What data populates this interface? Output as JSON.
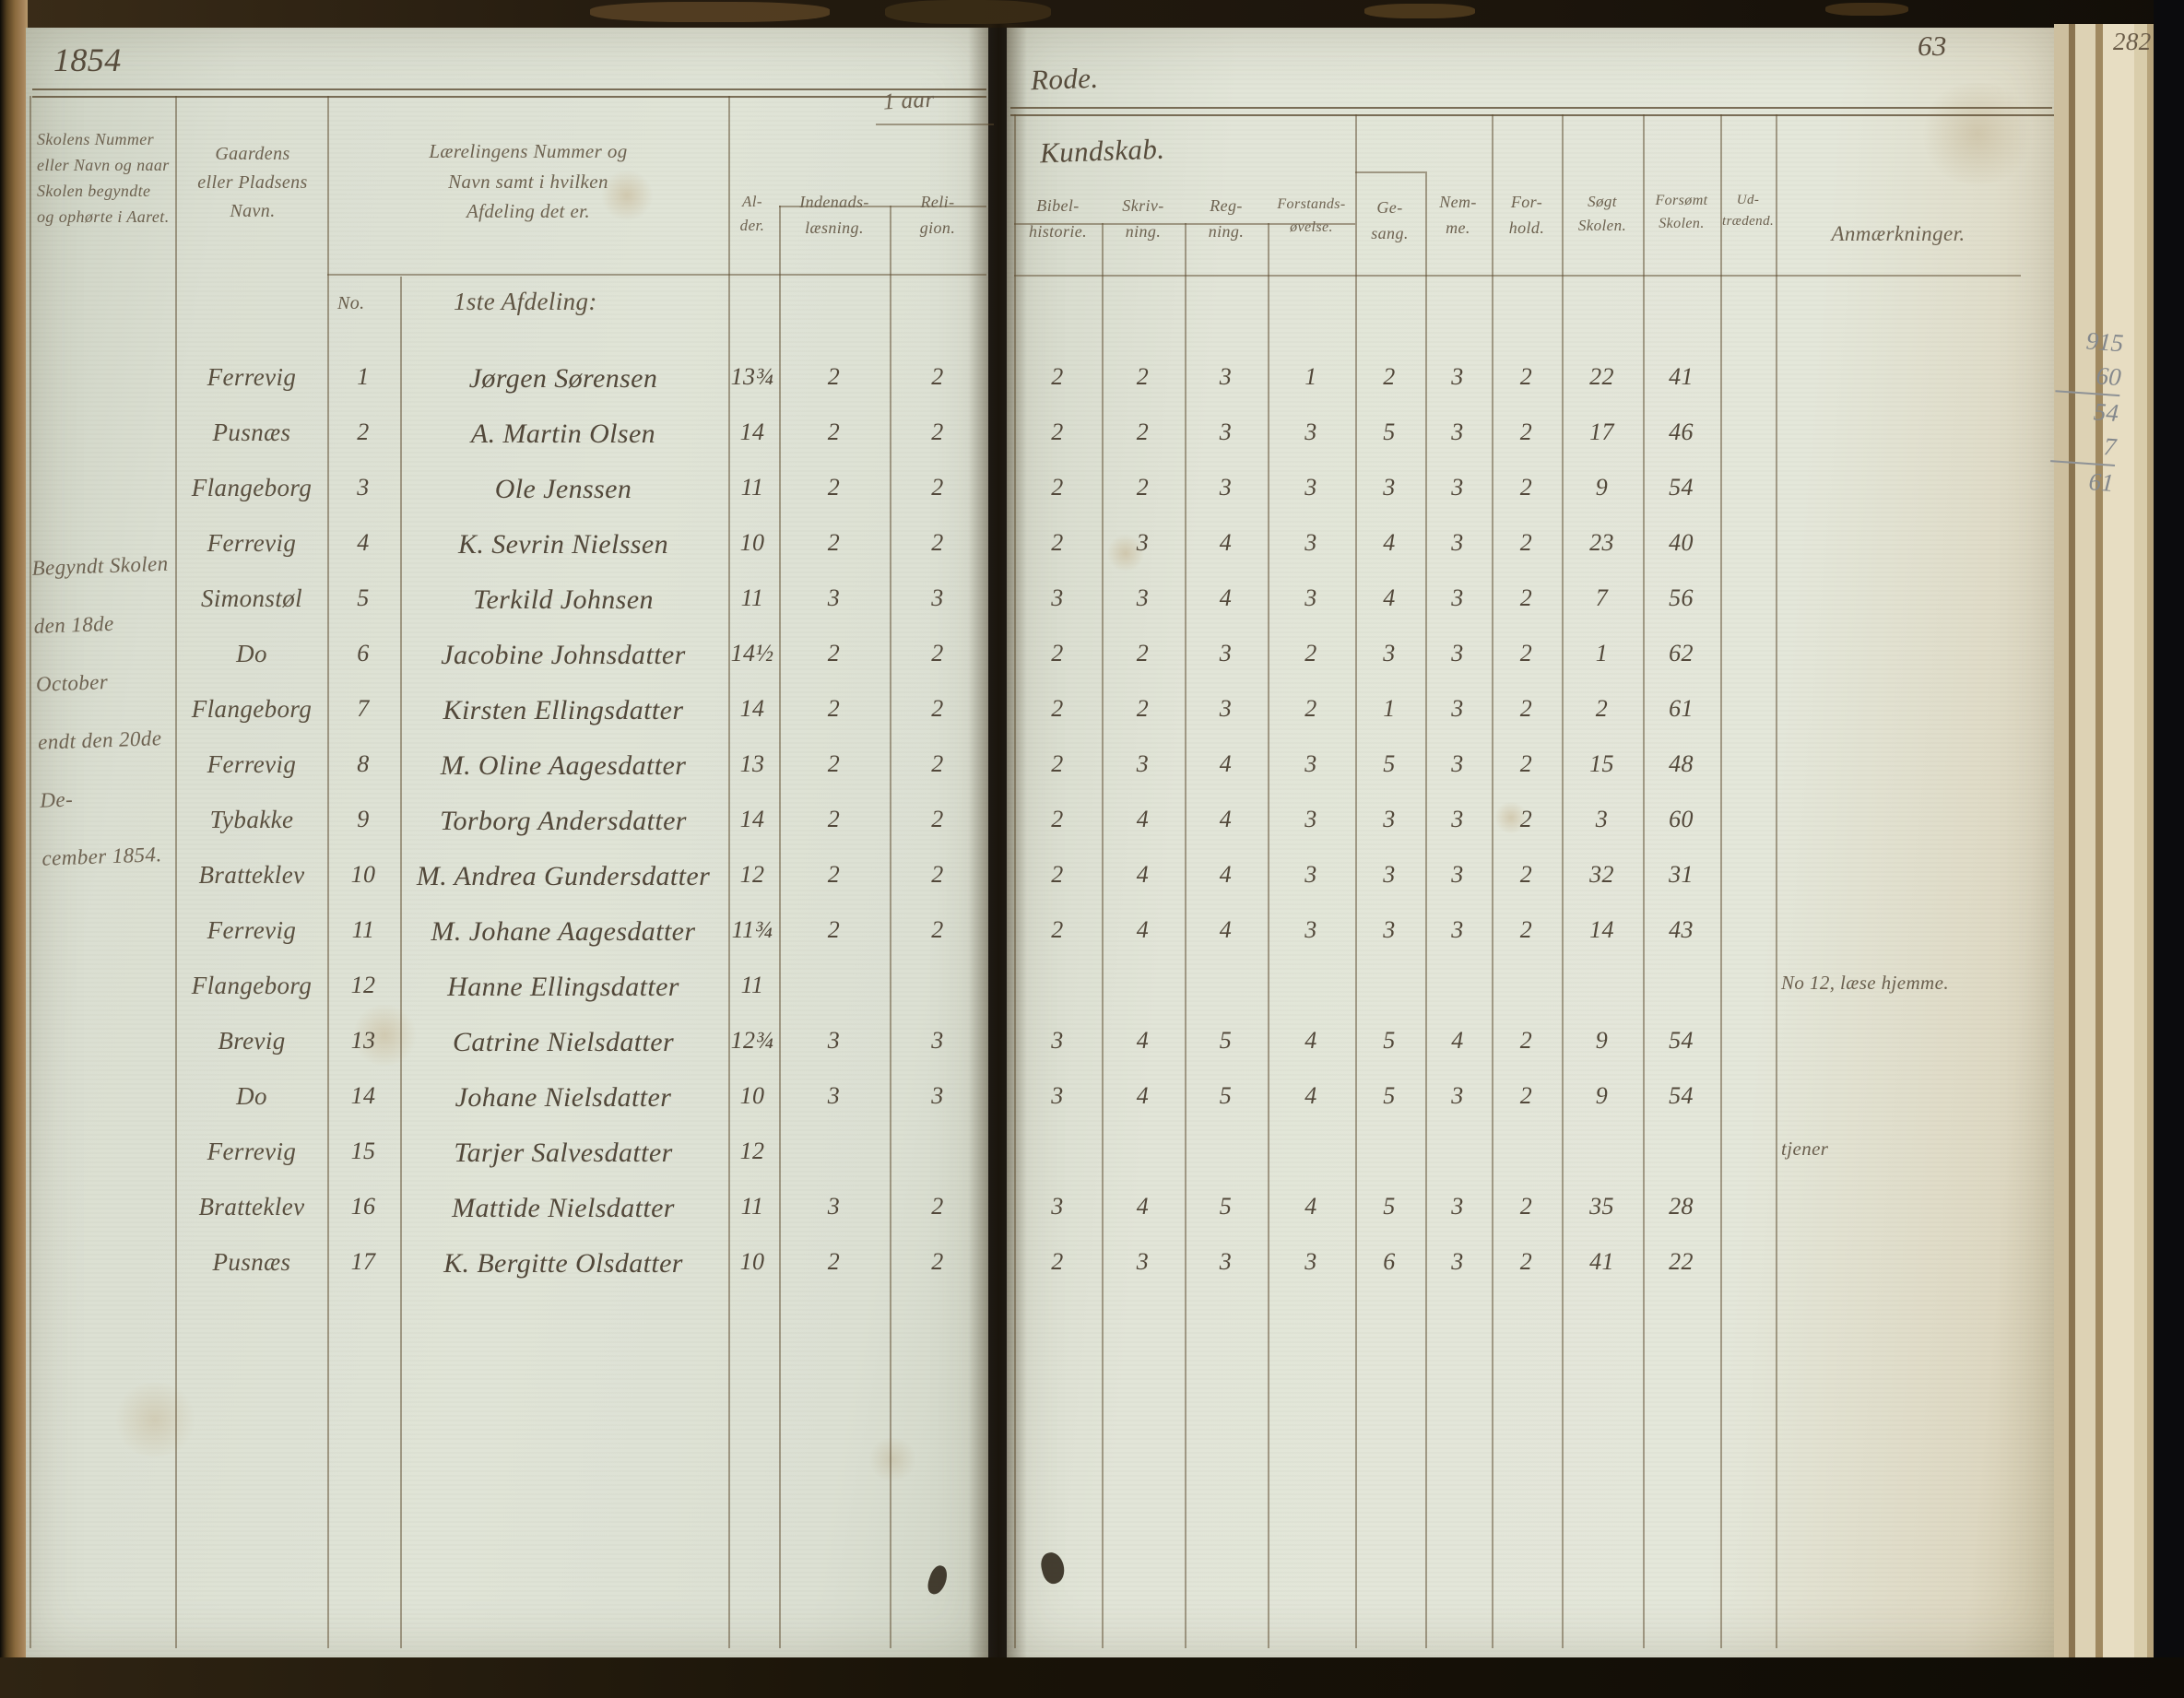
{
  "page": {
    "year": "1854",
    "term_label": "1 aar",
    "district_title": "Rode.",
    "knowledge_label": "Kundskab.",
    "page_number": "63",
    "edge_page_number": "282",
    "margin_note": "Begyndt Skolen\nden 18de October\nendt den 20de De-\ncember 1854.",
    "pencil_sums": [
      "915",
      "60",
      "54",
      "7",
      "61"
    ]
  },
  "table": {
    "headers": {
      "school": "Skolens Nummer\neller Navn og naar\nSkolen begyndte\nog ophørte i Aaret.",
      "place": "Gaardens\neller Pladsens\nNavn.",
      "pupil": "Lærelingens Nummer og\nNavn samt i hvilken\nAfdeling det er.",
      "age": "Al-\nder.",
      "reading": "Indenads-\nlæsning.",
      "religion": "Reli-\ngion.",
      "bible": "Bibel-\nhistorie.",
      "writing": "Skriv-\nning.",
      "arithmetic": "Reg-\nning.",
      "reasoning": "Forstands-\nøvelse.",
      "singing": "Ge-\nsang.",
      "aptitude": "Nem-\nme.",
      "conduct": "For-\nhold.",
      "attended": "Søgt\nSkolen.",
      "missed": "Forsømt\nSkolen.",
      "withdrawn": "Ud-\ntrædend.",
      "remarks": "Anmærkninger."
    },
    "number_label": "No.",
    "section_label": "1ste Afdeling:",
    "rows": [
      {
        "place": "Ferrevig",
        "num": "1",
        "name": "Jørgen Sørensen",
        "age": "13¾",
        "read": "2",
        "rel": "2",
        "bible": "2",
        "write": "2",
        "arith": "3",
        "reason": "1",
        "sing": "2",
        "apt": "3",
        "conduct": "2",
        "att": "22",
        "miss": "41",
        "out": "",
        "remark": ""
      },
      {
        "place": "Pusnæs",
        "num": "2",
        "name": "A. Martin Olsen",
        "age": "14",
        "read": "2",
        "rel": "2",
        "bible": "2",
        "write": "2",
        "arith": "3",
        "reason": "3",
        "sing": "5",
        "apt": "3",
        "conduct": "2",
        "att": "17",
        "miss": "46",
        "out": "",
        "remark": ""
      },
      {
        "place": "Flangeborg",
        "num": "3",
        "name": "Ole Jenssen",
        "age": "11",
        "read": "2",
        "rel": "2",
        "bible": "2",
        "write": "2",
        "arith": "3",
        "reason": "3",
        "sing": "3",
        "apt": "3",
        "conduct": "2",
        "att": "9",
        "miss": "54",
        "out": "",
        "remark": ""
      },
      {
        "place": "Ferrevig",
        "num": "4",
        "name": "K. Sevrin Nielssen",
        "age": "10",
        "read": "2",
        "rel": "2",
        "bible": "2",
        "write": "3",
        "arith": "4",
        "reason": "3",
        "sing": "4",
        "apt": "3",
        "conduct": "2",
        "att": "23",
        "miss": "40",
        "out": "",
        "remark": ""
      },
      {
        "place": "Simonstøl",
        "num": "5",
        "name": "Terkild Johnsen",
        "age": "11",
        "read": "3",
        "rel": "3",
        "bible": "3",
        "write": "3",
        "arith": "4",
        "reason": "3",
        "sing": "4",
        "apt": "3",
        "conduct": "2",
        "att": "7",
        "miss": "56",
        "out": "",
        "remark": ""
      },
      {
        "place": "Do",
        "num": "6",
        "name": "Jacobine Johnsdatter",
        "age": "14½",
        "read": "2",
        "rel": "2",
        "bible": "2",
        "write": "2",
        "arith": "3",
        "reason": "2",
        "sing": "3",
        "apt": "3",
        "conduct": "2",
        "att": "1",
        "miss": "62",
        "out": "",
        "remark": ""
      },
      {
        "place": "Flangeborg",
        "num": "7",
        "name": "Kirsten Ellingsdatter",
        "age": "14",
        "read": "2",
        "rel": "2",
        "bible": "2",
        "write": "2",
        "arith": "3",
        "reason": "2",
        "sing": "1",
        "apt": "3",
        "conduct": "2",
        "att": "2",
        "miss": "61",
        "out": "",
        "remark": ""
      },
      {
        "place": "Ferrevig",
        "num": "8",
        "name": "M. Oline Aagesdatter",
        "age": "13",
        "read": "2",
        "rel": "2",
        "bible": "2",
        "write": "3",
        "arith": "4",
        "reason": "3",
        "sing": "5",
        "apt": "3",
        "conduct": "2",
        "att": "15",
        "miss": "48",
        "out": "",
        "remark": ""
      },
      {
        "place": "Tybakke",
        "num": "9",
        "name": "Torborg Andersdatter",
        "age": "14",
        "read": "2",
        "rel": "2",
        "bible": "2",
        "write": "4",
        "arith": "4",
        "reason": "3",
        "sing": "3",
        "apt": "3",
        "conduct": "2",
        "att": "3",
        "miss": "60",
        "out": "",
        "remark": ""
      },
      {
        "place": "Bratteklev",
        "num": "10",
        "name": "M. Andrea Gundersdatter",
        "age": "12",
        "read": "2",
        "rel": "2",
        "bible": "2",
        "write": "4",
        "arith": "4",
        "reason": "3",
        "sing": "3",
        "apt": "3",
        "conduct": "2",
        "att": "32",
        "miss": "31",
        "out": "",
        "remark": ""
      },
      {
        "place": "Ferrevig",
        "num": "11",
        "name": "M. Johane Aagesdatter",
        "age": "11¾",
        "read": "2",
        "rel": "2",
        "bible": "2",
        "write": "4",
        "arith": "4",
        "reason": "3",
        "sing": "3",
        "apt": "3",
        "conduct": "2",
        "att": "14",
        "miss": "43",
        "out": "",
        "remark": ""
      },
      {
        "place": "Flangeborg",
        "num": "12",
        "name": "Hanne Ellingsdatter",
        "age": "11",
        "read": "",
        "rel": "",
        "bible": "",
        "write": "",
        "arith": "",
        "reason": "",
        "sing": "",
        "apt": "",
        "conduct": "",
        "att": "",
        "miss": "",
        "out": "",
        "remark": "No 12, læse hjemme."
      },
      {
        "place": "Brevig",
        "num": "13",
        "name": "Catrine Nielsdatter",
        "age": "12¾",
        "read": "3",
        "rel": "3",
        "bible": "3",
        "write": "4",
        "arith": "5",
        "reason": "4",
        "sing": "5",
        "apt": "4",
        "conduct": "2",
        "att": "9",
        "miss": "54",
        "out": "",
        "remark": ""
      },
      {
        "place": "Do",
        "num": "14",
        "name": "Johane Nielsdatter",
        "age": "10",
        "read": "3",
        "rel": "3",
        "bible": "3",
        "write": "4",
        "arith": "5",
        "reason": "4",
        "sing": "5",
        "apt": "3",
        "conduct": "2",
        "att": "9",
        "miss": "54",
        "out": "",
        "remark": ""
      },
      {
        "place": "Ferrevig",
        "num": "15",
        "name": "Tarjer Salvesdatter",
        "age": "12",
        "read": "",
        "rel": "",
        "bible": "",
        "write": "",
        "arith": "",
        "reason": "",
        "sing": "",
        "apt": "",
        "conduct": "",
        "att": "",
        "miss": "",
        "out": "",
        "remark": "tjener"
      },
      {
        "place": "Bratteklev",
        "num": "16",
        "name": "Mattide Nielsdatter",
        "age": "11",
        "read": "3",
        "rel": "2",
        "bible": "3",
        "write": "4",
        "arith": "5",
        "reason": "4",
        "sing": "5",
        "apt": "3",
        "conduct": "2",
        "att": "35",
        "miss": "28",
        "out": "",
        "remark": ""
      },
      {
        "place": "Pusnæs",
        "num": "17",
        "name": "K. Bergitte Olsdatter",
        "age": "10",
        "read": "2",
        "rel": "2",
        "bible": "2",
        "write": "3",
        "arith": "3",
        "reason": "3",
        "sing": "6",
        "apt": "3",
        "conduct": "2",
        "att": "41",
        "miss": "22",
        "out": "",
        "remark": ""
      }
    ]
  }
}
